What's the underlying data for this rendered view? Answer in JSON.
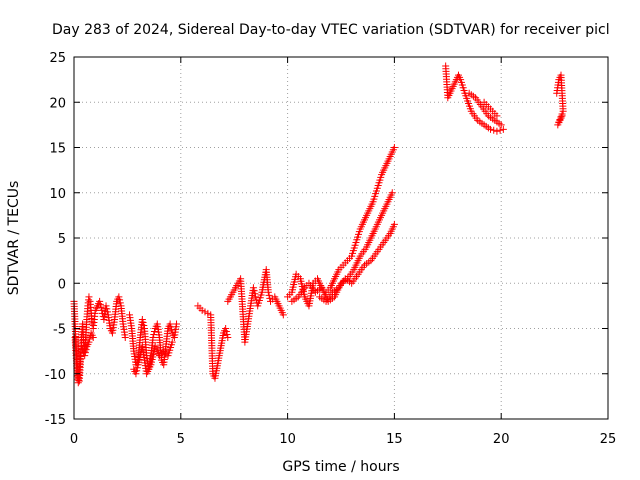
{
  "chart_data": {
    "type": "scatter",
    "title": "Day 283 of 2024, Sidereal Day-to-day VTEC variation (SDTVAR) for receiver picl",
    "xlabel": "GPS time / hours",
    "ylabel": "SDTVAR / TECUs",
    "xlim": [
      0,
      25
    ],
    "ylim": [
      -15,
      25
    ],
    "xticks": [
      0,
      5,
      10,
      15,
      20,
      25
    ],
    "yticks": [
      -15,
      -10,
      -5,
      0,
      5,
      10,
      15,
      20,
      25
    ],
    "grid": true,
    "marker": "+",
    "marker_color": "#ff0000",
    "series": [
      {
        "name": "SDTVAR",
        "segments": [
          {
            "x": [
              0.0,
              0.05,
              0.1,
              0.15,
              0.2,
              0.25,
              0.3,
              0.35,
              0.4,
              0.45,
              0.5,
              0.55,
              0.6,
              0.65,
              0.7,
              0.75,
              0.8,
              0.85,
              0.9,
              0.95,
              1.0,
              1.1,
              1.2,
              1.3,
              1.4,
              1.5,
              1.6,
              1.7,
              1.8,
              1.9,
              2.0,
              2.1,
              2.2,
              2.3,
              2.4
            ],
            "y": [
              -2.0,
              -4.5,
              -7.0,
              -9.0,
              -10.5,
              -10.8,
              -9.0,
              -6.0,
              -4.5,
              -6.5,
              -7.5,
              -6.0,
              -4.0,
              -2.5,
              -1.5,
              -2.0,
              -3.0,
              -4.5,
              -5.0,
              -4.0,
              -3.0,
              -2.5,
              -2.0,
              -3.0,
              -4.0,
              -2.5,
              -3.5,
              -5.0,
              -5.5,
              -4.0,
              -2.0,
              -1.5,
              -2.5,
              -4.5,
              -6.0
            ]
          },
          {
            "x": [
              0.05,
              0.1,
              0.15,
              0.2,
              0.25,
              0.3,
              0.35,
              0.5,
              0.6,
              0.7,
              0.8,
              0.9
            ],
            "y": [
              -6.0,
              -8.0,
              -10.0,
              -11.0,
              -9.5,
              -8.0,
              -7.0,
              -8.0,
              -7.0,
              -6.5,
              -5.5,
              -6.0
            ]
          },
          {
            "x": [
              2.6,
              2.7,
              2.8,
              2.9,
              3.0,
              3.1,
              3.2,
              3.3,
              3.4,
              3.5,
              3.6,
              3.7,
              3.8,
              3.9,
              4.0,
              4.1,
              4.2,
              4.3,
              4.4,
              4.5,
              4.6,
              4.7,
              4.8
            ],
            "y": [
              -3.5,
              -5.0,
              -7.5,
              -9.0,
              -8.5,
              -6.0,
              -4.0,
              -5.0,
              -8.0,
              -9.5,
              -8.0,
              -6.0,
              -5.0,
              -4.5,
              -6.0,
              -8.5,
              -9.0,
              -7.0,
              -5.0,
              -4.5,
              -5.5,
              -6.0,
              -4.5
            ]
          },
          {
            "x": [
              2.8,
              2.9,
              3.0,
              3.2,
              3.4,
              3.6,
              3.8,
              4.0,
              4.2,
              4.4,
              4.6
            ],
            "y": [
              -9.5,
              -10.0,
              -9.0,
              -7.0,
              -10.0,
              -9.0,
              -7.0,
              -8.0,
              -7.5,
              -8.0,
              -6.5
            ]
          },
          {
            "x": [
              5.8,
              6.0,
              6.4,
              6.5,
              6.6,
              7.0,
              7.1,
              7.2
            ],
            "y": [
              -2.5,
              -3.0,
              -3.5,
              -10.0,
              -10.5,
              -5.5,
              -5.0,
              -6.0
            ]
          },
          {
            "x": [
              7.2,
              7.8,
              8.0,
              8.4,
              8.5,
              8.6,
              8.8,
              9.0,
              9.1,
              9.2,
              9.4,
              9.6,
              9.8
            ],
            "y": [
              -2.0,
              0.5,
              -6.5,
              -0.5,
              -1.5,
              -2.5,
              -1.0,
              1.5,
              -1.0,
              -2.0,
              -1.5,
              -2.5,
              -3.5
            ]
          },
          {
            "x": [
              10.0,
              10.2,
              10.4,
              10.6,
              10.8,
              11.0,
              11.2,
              11.4,
              11.6,
              11.8,
              12.0,
              12.2,
              12.4,
              12.6,
              12.8,
              13.0,
              13.2,
              13.4,
              13.6,
              13.8,
              14.0,
              14.2,
              14.4,
              14.6,
              14.8,
              15.0
            ],
            "y": [
              -1.5,
              -1.0,
              1.0,
              0.5,
              -1.5,
              -2.5,
              0.0,
              0.5,
              -0.5,
              -1.0,
              -0.5,
              0.5,
              1.5,
              2.0,
              2.5,
              3.0,
              4.5,
              6.0,
              7.0,
              8.0,
              9.0,
              10.5,
              12.0,
              13.0,
              14.0,
              15.0
            ]
          },
          {
            "x": [
              10.2,
              10.5,
              10.8,
              11.0,
              11.3,
              11.6,
              11.9,
              12.2,
              12.5,
              12.8,
              13.1,
              13.4,
              13.7,
              14.0,
              14.3,
              14.6,
              14.9
            ],
            "y": [
              -2.0,
              -1.5,
              -0.5,
              0.0,
              -1.0,
              -0.5,
              -2.0,
              -1.5,
              0.0,
              0.5,
              1.5,
              3.0,
              4.0,
              5.5,
              7.0,
              8.5,
              10.0
            ]
          },
          {
            "x": [
              11.5,
              11.8,
              12.1,
              12.4,
              12.7,
              13.0,
              13.3,
              13.6,
              13.9,
              14.2,
              14.5,
              14.8,
              15.0
            ],
            "y": [
              -1.5,
              -2.0,
              -1.0,
              -0.5,
              0.5,
              0.0,
              1.0,
              2.0,
              2.5,
              3.5,
              4.5,
              5.5,
              6.5
            ]
          },
          {
            "x": [
              17.4,
              17.5,
              18.0,
              18.1,
              18.3,
              18.6,
              18.9,
              19.2,
              19.5,
              19.8,
              20.1
            ],
            "y": [
              24.0,
              20.5,
              23.0,
              22.5,
              21.0,
              19.0,
              18.0,
              17.5,
              17.0,
              16.8,
              17.0
            ]
          },
          {
            "x": [
              18.5,
              18.8,
              19.1,
              19.4,
              19.7,
              20.0
            ],
            "y": [
              21.0,
              20.5,
              19.5,
              18.5,
              18.0,
              17.5
            ]
          },
          {
            "x": [
              19.2,
              19.4,
              19.6,
              19.8
            ],
            "y": [
              20.0,
              19.5,
              19.0,
              18.5
            ]
          },
          {
            "x": [
              22.6,
              22.7,
              22.8,
              22.9,
              22.65,
              22.75,
              22.85
            ],
            "y": [
              21.0,
              22.5,
              23.0,
              19.0,
              17.5,
              18.0,
              18.5
            ]
          }
        ]
      }
    ]
  }
}
